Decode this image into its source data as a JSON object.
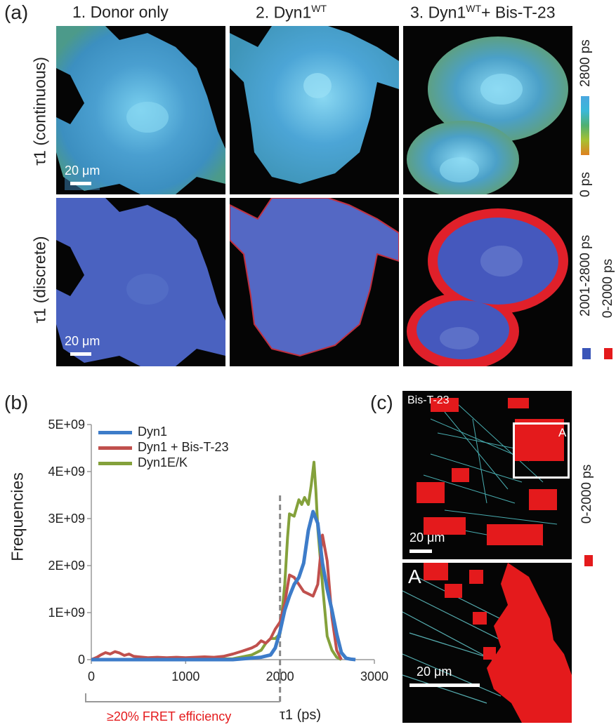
{
  "panel_a": {
    "label": "(a)",
    "columns": [
      "1. Donor only",
      "2. Dyn1",
      "3. Dyn1"
    ],
    "column_sup": [
      "",
      "WT",
      "WT"
    ],
    "column_suffix": [
      "",
      "",
      "+ Bis-T-23"
    ],
    "rows": [
      "τ1 (continuous)",
      "τ1 (discrete)"
    ],
    "scale_bar": "20 μm",
    "colorbar": {
      "max_label": "2800 ps",
      "min_label": "0 ps"
    },
    "discrete_legend": [
      {
        "label": "2001-2800 ps",
        "color": "#3a55b8"
      },
      {
        "label": "0-2000 ps",
        "color": "#e41a1c"
      }
    ]
  },
  "panel_b": {
    "label": "(b)",
    "threshold_label": "≥20% FRET efficiency"
  },
  "panel_c": {
    "label": "(c)",
    "top_title": "Bis-T-23",
    "box_label": "A",
    "inset_label": "A",
    "scale_bar": "20 μm",
    "legend_label": "0-2000 ps",
    "legend_color": "#e41a1c"
  },
  "chart_data": {
    "type": "line",
    "xlabel": "τ1 (ps)",
    "ylabel": "Frequencies",
    "xlim": [
      0,
      3000
    ],
    "ylim": [
      0,
      5000000000
    ],
    "xticks": [
      "0",
      "1000",
      "2000",
      "3000"
    ],
    "yticks": [
      "0",
      "1E+09",
      "2E+09",
      "3E+09",
      "4E+09",
      "5E+09"
    ],
    "threshold_x": 2000,
    "series": [
      {
        "name": "Dyn1",
        "color": "#3d7cc9",
        "x": [
          0,
          1500,
          1800,
          1900,
          1950,
          2000,
          2050,
          2100,
          2150,
          2200,
          2250,
          2300,
          2350,
          2400,
          2450,
          2500,
          2550,
          2600,
          2650,
          2700,
          2750,
          2800
        ],
        "y": [
          0,
          0,
          50000000.0,
          100000000.0,
          250000000.0,
          600000000.0,
          1050000000.0,
          1350000000.0,
          1600000000.0,
          1750000000.0,
          2050000000.0,
          2750000000.0,
          3150000000.0,
          2900000000.0,
          2050000000.0,
          1500000000.0,
          1050000000.0,
          550000000.0,
          150000000.0,
          30000000.0,
          10000000.0,
          0
        ]
      },
      {
        "name": "Dyn1 + Bis-T-23",
        "color": "#c0504d",
        "x": [
          0,
          60,
          100,
          150,
          200,
          250,
          300,
          350,
          400,
          450,
          500,
          600,
          700,
          800,
          900,
          1000,
          1100,
          1200,
          1300,
          1400,
          1500,
          1600,
          1700,
          1750,
          1800,
          1850,
          1900,
          1950,
          2000,
          2050,
          2100,
          2150,
          2200,
          2250,
          2300,
          2350,
          2400,
          2450,
          2500,
          2550,
          2600,
          2650
        ],
        "y": [
          0,
          50000000.0,
          100000000.0,
          150000000.0,
          120000000.0,
          170000000.0,
          140000000.0,
          90000000.0,
          120000000.0,
          70000000.0,
          60000000.0,
          40000000.0,
          50000000.0,
          40000000.0,
          50000000.0,
          40000000.0,
          50000000.0,
          60000000.0,
          50000000.0,
          70000000.0,
          120000000.0,
          180000000.0,
          250000000.0,
          300000000.0,
          400000000.0,
          350000000.0,
          450000000.0,
          650000000.0,
          800000000.0,
          1200000000.0,
          1800000000.0,
          1750000000.0,
          1600000000.0,
          1450000000.0,
          1400000000.0,
          1350000000.0,
          1600000000.0,
          2650000000.0,
          2100000000.0,
          900000000.0,
          200000000.0,
          0
        ]
      },
      {
        "name": "Dyn1E/K",
        "color": "#84a13b",
        "x": [
          0,
          1500,
          1700,
          1800,
          1850,
          1900,
          1950,
          2000,
          2050,
          2080,
          2100,
          2150,
          2200,
          2230,
          2260,
          2300,
          2330,
          2360,
          2380,
          2400,
          2450,
          2500,
          2550,
          2600,
          2650
        ],
        "y": [
          0,
          20000000.0,
          100000000.0,
          200000000.0,
          350000000.0,
          450000000.0,
          450000000.0,
          550000000.0,
          1600000000.0,
          2600000000.0,
          3100000000.0,
          3050000000.0,
          3400000000.0,
          3300000000.0,
          3450000000.0,
          3300000000.0,
          3700000000.0,
          4200000000.0,
          3600000000.0,
          2800000000.0,
          1600000000.0,
          500000000.0,
          200000000.0,
          50000000.0,
          0
        ]
      }
    ],
    "legend": "top-left"
  }
}
